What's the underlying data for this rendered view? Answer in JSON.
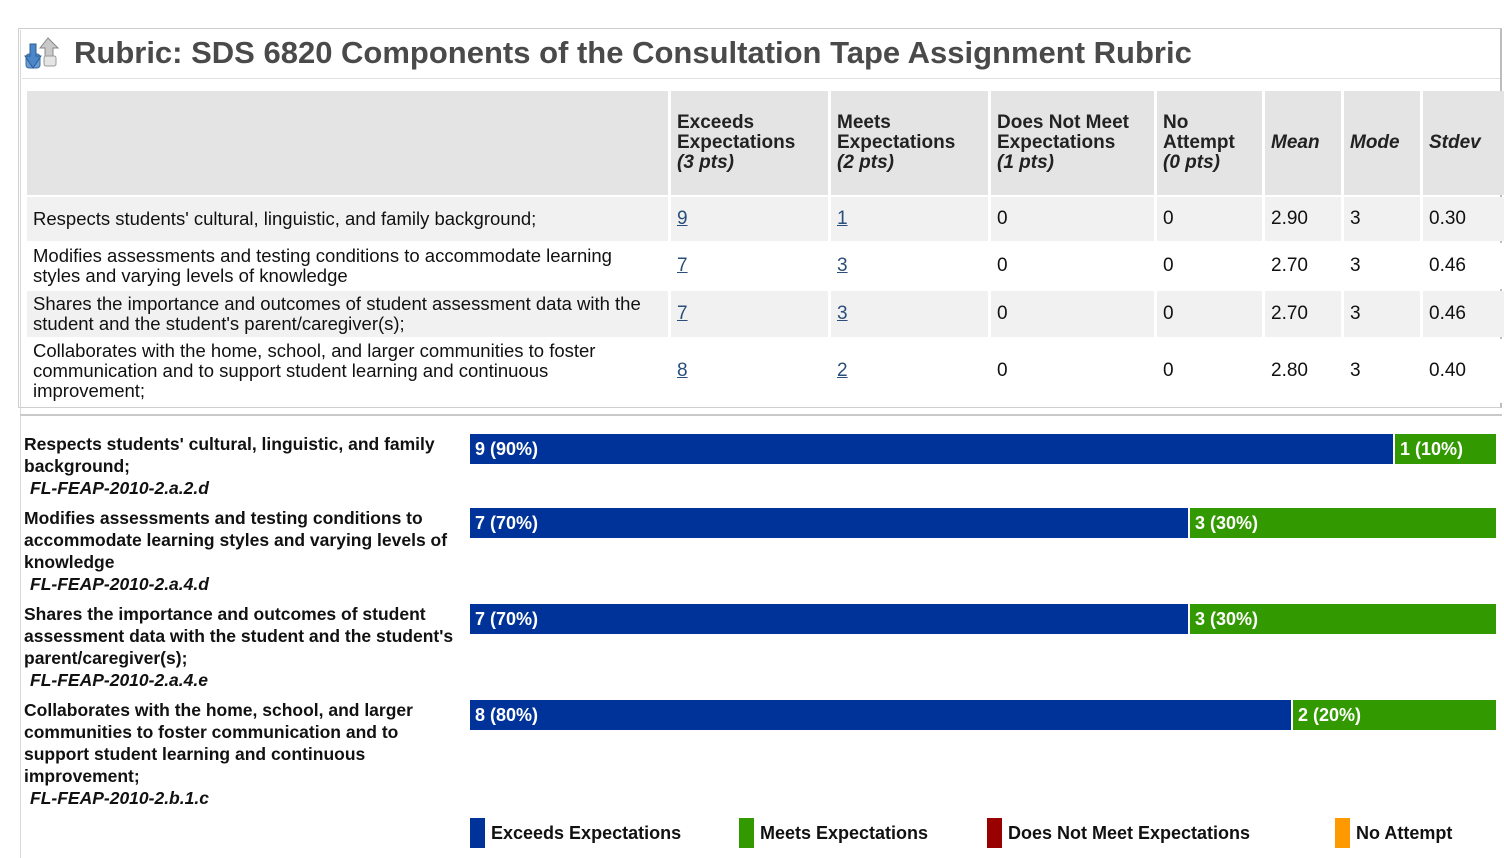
{
  "title": "Rubric: SDS 6820 Components of the Consultation Tape Assignment Rubric",
  "table": {
    "headers": {
      "exceeds": {
        "label": "Exceeds Expectations",
        "pts": "(3 pts)"
      },
      "meets": {
        "label": "Meets Expectations",
        "pts": "(2 pts)"
      },
      "doesnot": {
        "label": "Does Not Meet Expectations",
        "pts": "(1 pts)"
      },
      "noattempt": {
        "label": "No Attempt",
        "pts": "(0 pts)"
      },
      "mean": "Mean",
      "mode": "Mode",
      "stdev": "Stdev"
    },
    "rows": [
      {
        "criterion": "Respects students' cultural, linguistic, and family background;",
        "exceeds": "9",
        "meets": "1",
        "doesnot": "0",
        "noattempt": "0",
        "mean": "2.90",
        "mode": "3",
        "stdev": "0.30"
      },
      {
        "criterion": "Modifies assessments and testing conditions to accommodate learning styles and varying levels of knowledge",
        "exceeds": "7",
        "meets": "3",
        "doesnot": "0",
        "noattempt": "0",
        "mean": "2.70",
        "mode": "3",
        "stdev": "0.46"
      },
      {
        "criterion": "Shares the importance and outcomes of student assessment data with the student and the student's parent/caregiver(s);",
        "exceeds": "7",
        "meets": "3",
        "doesnot": "0",
        "noattempt": "0",
        "mean": "2.70",
        "mode": "3",
        "stdev": "0.46"
      },
      {
        "criterion": "Collaborates with the home, school, and larger communities to foster communication and to support student learning and continuous improvement;",
        "exceeds": "8",
        "meets": "2",
        "doesnot": "0",
        "noattempt": "0",
        "mean": "2.80",
        "mode": "3",
        "stdev": "0.40"
      }
    ]
  },
  "bars": [
    {
      "criterion": "Respects students' cultural, linguistic, and family background;",
      "code": "FL-FEAP-2010-2.a.2.d",
      "exceeds_fraction": 0.9,
      "meets_fraction": 0.1,
      "exceeds_label": "9 (90%)",
      "meets_label": "1 (10%)"
    },
    {
      "criterion": "Modifies assessments and testing conditions to accommodate learning styles and varying levels of knowledge",
      "code": "FL-FEAP-2010-2.a.4.d",
      "exceeds_fraction": 0.7,
      "meets_fraction": 0.3,
      "exceeds_label": "7 (70%)",
      "meets_label": "3 (30%)"
    },
    {
      "criterion": "Shares the importance and outcomes of student assessment data with the student and the student's parent/caregiver(s);",
      "code": "FL-FEAP-2010-2.a.4.e",
      "exceeds_fraction": 0.7,
      "meets_fraction": 0.3,
      "exceeds_label": "7 (70%)",
      "meets_label": "3 (30%)"
    },
    {
      "criterion": "Collaborates with the home, school, and larger communities to foster communication and to support student learning and continuous improvement;",
      "code": "FL-FEAP-2010-2.b.1.c",
      "exceeds_fraction": 0.8,
      "meets_fraction": 0.2,
      "exceeds_label": "8 (80%)",
      "meets_label": "2 (20%)"
    }
  ],
  "legend": [
    {
      "label": "Exceeds Expectations",
      "color": "#003399"
    },
    {
      "label": "Meets Expectations",
      "color": "#339900"
    },
    {
      "label": "Does Not Meet Expectations",
      "color": "#990000"
    },
    {
      "label": "No Attempt",
      "color": "#FF9900"
    }
  ],
  "icons": {
    "title": "rubric-arrows-icon"
  }
}
